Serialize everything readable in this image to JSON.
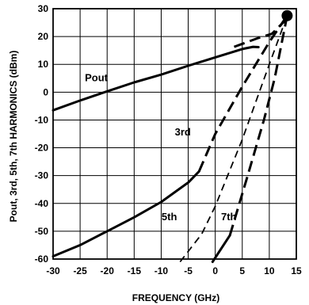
{
  "chart_data": {
    "type": "line",
    "title": "",
    "xlabel": "FREQUENCY (GHz)",
    "ylabel": "Pout, 3rd, 5th, 7th HARMONICS (dBm)",
    "xlim": [
      -30,
      15
    ],
    "ylim": [
      -60,
      30
    ],
    "x_ticks": [
      "-30",
      "-25",
      "-20",
      "-15",
      "-10",
      "-5",
      "0",
      "5",
      "10",
      "15"
    ],
    "y_ticks": [
      "30",
      "20",
      "10",
      "0",
      "-10",
      "-20",
      "-30",
      "-40",
      "-50",
      "-60"
    ],
    "grid": true,
    "series": [
      {
        "name": "Pout",
        "style": "solid",
        "x": [
          -30,
          -25,
          -20,
          -15,
          -10,
          -5,
          0,
          5,
          7,
          8
        ],
        "y": [
          -6.5,
          -3,
          0.3,
          3.5,
          6.3,
          9.5,
          12.5,
          15.5,
          16.3,
          16.2
        ]
      },
      {
        "name": "Pout",
        "style": "dashed",
        "x": [
          3.5,
          8,
          10.5,
          13.3
        ],
        "y": [
          16.3,
          19.5,
          21,
          26.5
        ]
      },
      {
        "name": "3rd",
        "style": "solid",
        "x": [
          -30,
          -25,
          -20,
          -15,
          -10,
          -5,
          -3
        ],
        "y": [
          -59,
          -55,
          -50,
          -45,
          -39.5,
          -32.5,
          -28.5
        ]
      },
      {
        "name": "3rd",
        "style": "dashed",
        "x": [
          -3,
          0,
          5,
          10,
          13.3
        ],
        "y": [
          -28.5,
          -15,
          2,
          18,
          27.5
        ]
      },
      {
        "name": "5th",
        "style": "dashed",
        "x": [
          -6.5,
          -2.5,
          0,
          5,
          10,
          13.3
        ],
        "y": [
          -61,
          -51,
          -41,
          -17,
          10,
          27.5
        ]
      },
      {
        "name": "7th",
        "style": "solid",
        "x": [
          -0.5,
          2.7
        ],
        "y": [
          -61,
          -51.5
        ]
      },
      {
        "name": "7th",
        "style": "dashed",
        "x": [
          2.7,
          6,
          9,
          11,
          13.3
        ],
        "y": [
          -51.5,
          -30,
          -10,
          5,
          27.5
        ]
      }
    ],
    "annotations": [
      {
        "text": "Pout",
        "x": -22,
        "y": 4
      },
      {
        "text": "3rd",
        "x": -6,
        "y": -15.5
      },
      {
        "text": "5th",
        "x": -8.5,
        "y": -46
      },
      {
        "text": "7th",
        "x": 2.5,
        "y": -46
      }
    ],
    "marker": {
      "x": 13.3,
      "y": 27.5
    }
  }
}
